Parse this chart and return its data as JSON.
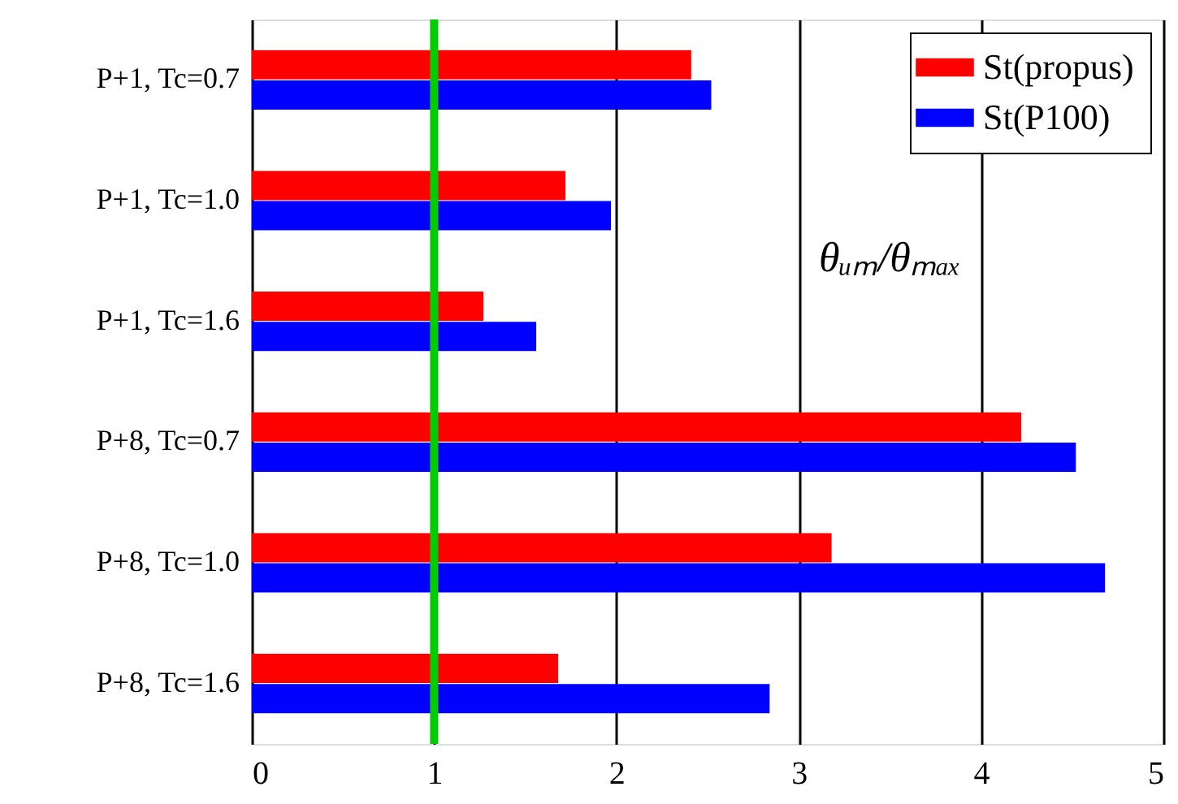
{
  "chart_data": {
    "type": "bar",
    "orientation": "horizontal",
    "categories": [
      "P+1, Tc=0.7",
      "P+1, Tc=1.0",
      "P+1, Tc=1.6",
      "P+8, Tc=0.7",
      "P+8, Tc=1.0",
      "P+8, Tc=1.6"
    ],
    "series": [
      {
        "name": "St(propus)",
        "color": "#ff0000",
        "values": [
          2.41,
          1.72,
          1.27,
          4.22,
          3.18,
          1.68
        ]
      },
      {
        "name": "St(P100)",
        "color": "#0000ff",
        "values": [
          2.52,
          1.97,
          1.56,
          4.52,
          4.68,
          2.84
        ]
      }
    ],
    "xlim": [
      0,
      5
    ],
    "xticks": [
      0,
      1,
      2,
      3,
      4,
      5
    ],
    "grid": "x",
    "legend": "top right",
    "ref_lines": [
      {
        "axis": "x",
        "value": 1,
        "color": "#00cc00"
      }
    ],
    "annotations": [
      "θᵤₘ/θₘₐₓ"
    ]
  }
}
